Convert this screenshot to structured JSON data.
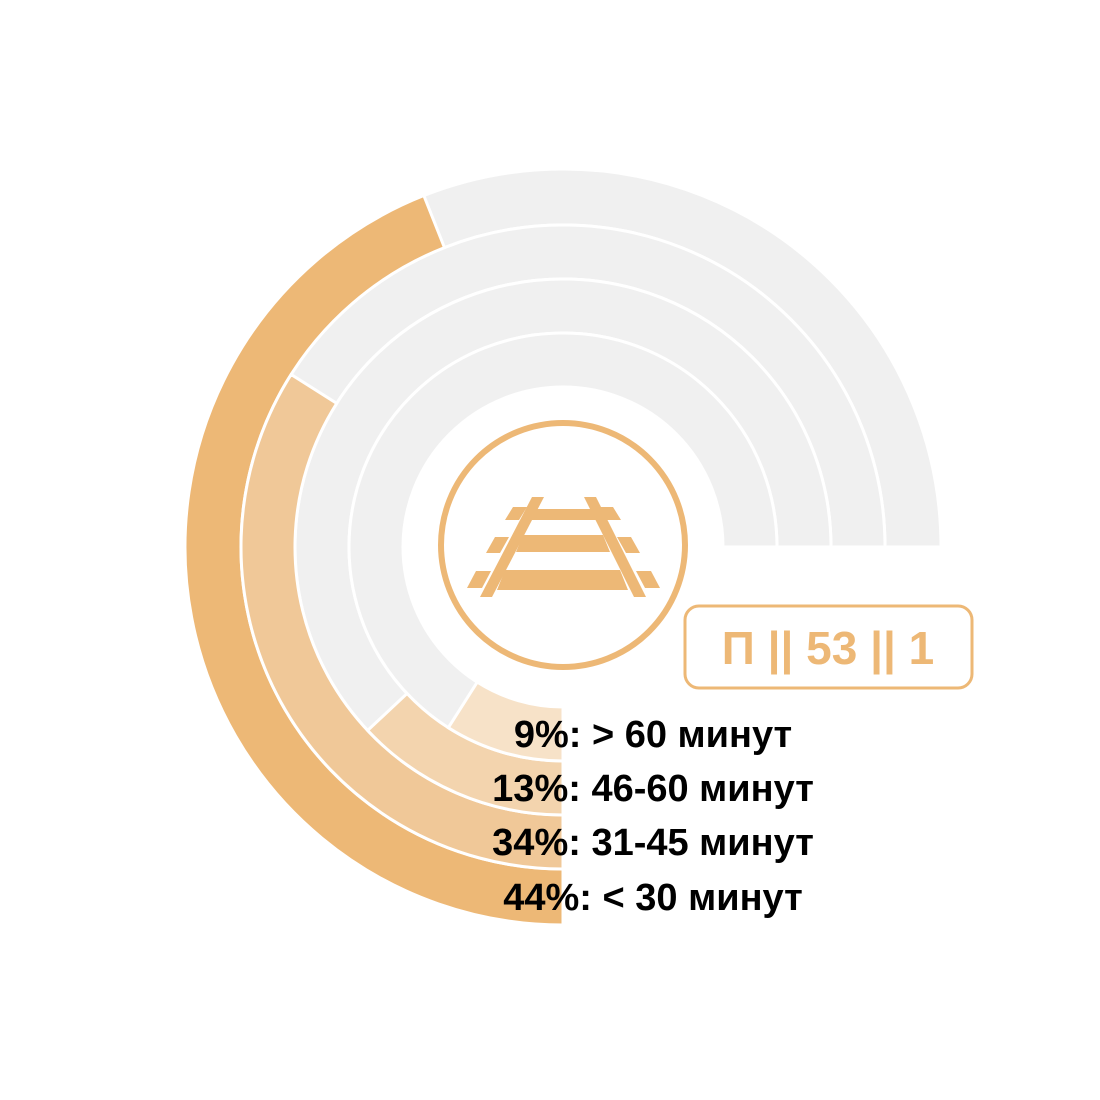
{
  "chart_data": {
    "type": "radial_bar",
    "title": "",
    "unit": "%",
    "rings": [
      {
        "label": "44%: < 30 минут",
        "value": 44,
        "color": "#edb876"
      },
      {
        "label": "34%: 31-45 минут",
        "value": 34,
        "color": "#f0c898"
      },
      {
        "label": "13%: 46-60 минут",
        "value": 13,
        "color": "#f3d4ae"
      },
      {
        "label": "9%: > 60 минут",
        "value": 9,
        "color": "#f7e2c8"
      }
    ],
    "track_color": "#f0f0f0",
    "track_span_percent": 75,
    "range": [
      0,
      100
    ]
  },
  "badge": {
    "text": "П || 53 || 1",
    "color": "#edb876"
  },
  "icon": {
    "name": "railway-track-icon",
    "color": "#edb876"
  }
}
